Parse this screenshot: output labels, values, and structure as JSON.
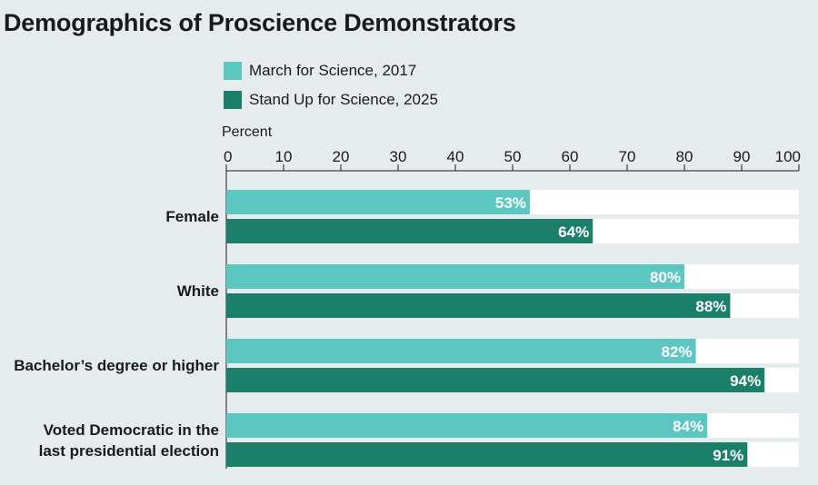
{
  "chart_data": {
    "type": "bar",
    "orientation": "horizontal",
    "title": "Demographics of Proscience Demonstrators",
    "xlabel": "Percent",
    "xlim": [
      0,
      100
    ],
    "x_ticks": [
      0,
      10,
      20,
      30,
      40,
      50,
      60,
      70,
      80,
      90,
      100
    ],
    "categories": [
      "Female",
      "White",
      "Bachelor’s degree or higher",
      "Voted Democratic in the last presidential election"
    ],
    "series": [
      {
        "name": "March for Science, 2017",
        "color": "#5cc6c0",
        "values": [
          53,
          80,
          82,
          84
        ],
        "labels": [
          "53%",
          "80%",
          "82%",
          "84%"
        ]
      },
      {
        "name": "Stand Up for Science, 2025",
        "color": "#1c7f6a",
        "values": [
          64,
          88,
          94,
          91
        ],
        "labels": [
          "64%",
          "88%",
          "94%",
          "91%"
        ]
      }
    ],
    "legend_position": "top"
  },
  "category_lines": [
    [
      "Female"
    ],
    [
      "White"
    ],
    [
      "Bachelor’s degree or higher"
    ],
    [
      "Voted Democratic in the",
      "last presidential election"
    ]
  ],
  "colors": {
    "background": "#e6ebee",
    "track": "#ffffff"
  }
}
